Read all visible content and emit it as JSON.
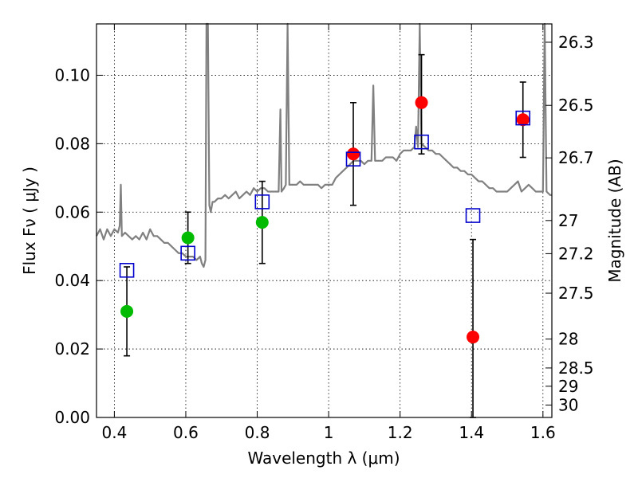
{
  "chart_data": {
    "type": "scatter",
    "title": "",
    "xlabel": "Wavelength  λ (μm)",
    "ylabel": "Flux  Fν  ( μJy )",
    "y2label": "Magnitude (AB)",
    "xlim": [
      0.35,
      1.625
    ],
    "ylim": [
      0.0,
      0.115
    ],
    "grid": true,
    "x_ticks": [
      {
        "value": 0.4,
        "label": "0.4"
      },
      {
        "value": 0.6,
        "label": "0.6"
      },
      {
        "value": 0.8,
        "label": "0.8"
      },
      {
        "value": 1.0,
        "label": "1"
      },
      {
        "value": 1.2,
        "label": "1.2"
      },
      {
        "value": 1.4,
        "label": "1.4"
      },
      {
        "value": 1.6,
        "label": "1.6"
      }
    ],
    "y_ticks": [
      {
        "value": 0.0,
        "label": "0.00"
      },
      {
        "value": 0.02,
        "label": "0.02"
      },
      {
        "value": 0.04,
        "label": "0.04"
      },
      {
        "value": 0.06,
        "label": "0.06"
      },
      {
        "value": 0.08,
        "label": "0.08"
      },
      {
        "value": 0.1,
        "label": "0.10"
      }
    ],
    "y2_ticks": [
      {
        "value": 26.3,
        "label": "26.3"
      },
      {
        "value": 26.5,
        "label": "26.5"
      },
      {
        "value": 26.7,
        "label": "26.7"
      },
      {
        "value": 27.0,
        "label": "27"
      },
      {
        "value": 27.2,
        "label": "27.2"
      },
      {
        "value": 27.5,
        "label": "27.5"
      },
      {
        "value": 28.0,
        "label": "28"
      },
      {
        "value": 28.5,
        "label": "28.5"
      },
      {
        "value": 29.0,
        "label": "29"
      },
      {
        "value": 30.0,
        "label": "30"
      }
    ],
    "series": [
      {
        "kind": "spectrum_line",
        "color": "#808080",
        "points": [
          [
            0.35,
            0.053
          ],
          [
            0.36,
            0.055
          ],
          [
            0.37,
            0.052
          ],
          [
            0.38,
            0.055
          ],
          [
            0.39,
            0.053
          ],
          [
            0.4,
            0.055
          ],
          [
            0.41,
            0.054
          ],
          [
            0.415,
            0.056
          ],
          [
            0.418,
            0.068
          ],
          [
            0.421,
            0.053
          ],
          [
            0.43,
            0.054
          ],
          [
            0.44,
            0.053
          ],
          [
            0.45,
            0.052
          ],
          [
            0.46,
            0.053
          ],
          [
            0.47,
            0.052
          ],
          [
            0.48,
            0.054
          ],
          [
            0.49,
            0.052
          ],
          [
            0.5,
            0.055
          ],
          [
            0.51,
            0.053
          ],
          [
            0.52,
            0.053
          ],
          [
            0.53,
            0.052
          ],
          [
            0.54,
            0.051
          ],
          [
            0.55,
            0.051
          ],
          [
            0.56,
            0.05
          ],
          [
            0.57,
            0.049
          ],
          [
            0.58,
            0.048
          ],
          [
            0.59,
            0.048
          ],
          [
            0.6,
            0.047
          ],
          [
            0.61,
            0.047
          ],
          [
            0.62,
            0.047
          ],
          [
            0.63,
            0.046
          ],
          [
            0.64,
            0.047
          ],
          [
            0.645,
            0.045
          ],
          [
            0.65,
            0.044
          ],
          [
            0.655,
            0.046
          ],
          [
            0.658,
            0.115
          ],
          [
            0.662,
            0.115
          ],
          [
            0.666,
            0.062
          ],
          [
            0.67,
            0.06
          ],
          [
            0.675,
            0.063
          ],
          [
            0.68,
            0.063
          ],
          [
            0.69,
            0.064
          ],
          [
            0.7,
            0.064
          ],
          [
            0.71,
            0.065
          ],
          [
            0.72,
            0.064
          ],
          [
            0.73,
            0.065
          ],
          [
            0.74,
            0.066
          ],
          [
            0.75,
            0.064
          ],
          [
            0.76,
            0.065
          ],
          [
            0.77,
            0.066
          ],
          [
            0.78,
            0.065
          ],
          [
            0.79,
            0.067
          ],
          [
            0.8,
            0.066
          ],
          [
            0.81,
            0.067
          ],
          [
            0.82,
            0.067
          ],
          [
            0.83,
            0.066
          ],
          [
            0.84,
            0.066
          ],
          [
            0.85,
            0.066
          ],
          [
            0.86,
            0.066
          ],
          [
            0.865,
            0.09
          ],
          [
            0.868,
            0.066
          ],
          [
            0.875,
            0.067
          ],
          [
            0.88,
            0.068
          ],
          [
            0.885,
            0.115
          ],
          [
            0.89,
            0.068
          ],
          [
            0.9,
            0.068
          ],
          [
            0.91,
            0.068
          ],
          [
            0.92,
            0.069
          ],
          [
            0.93,
            0.068
          ],
          [
            0.94,
            0.068
          ],
          [
            0.95,
            0.068
          ],
          [
            0.96,
            0.068
          ],
          [
            0.97,
            0.068
          ],
          [
            0.98,
            0.067
          ],
          [
            0.99,
            0.068
          ],
          [
            1.0,
            0.068
          ],
          [
            1.01,
            0.068
          ],
          [
            1.02,
            0.07
          ],
          [
            1.03,
            0.071
          ],
          [
            1.04,
            0.072
          ],
          [
            1.05,
            0.073
          ],
          [
            1.06,
            0.074
          ],
          [
            1.07,
            0.075
          ],
          [
            1.08,
            0.075
          ],
          [
            1.09,
            0.075
          ],
          [
            1.1,
            0.074
          ],
          [
            1.11,
            0.075
          ],
          [
            1.12,
            0.075
          ],
          [
            1.125,
            0.097
          ],
          [
            1.13,
            0.075
          ],
          [
            1.14,
            0.075
          ],
          [
            1.15,
            0.075
          ],
          [
            1.16,
            0.076
          ],
          [
            1.17,
            0.076
          ],
          [
            1.18,
            0.076
          ],
          [
            1.19,
            0.075
          ],
          [
            1.2,
            0.077
          ],
          [
            1.21,
            0.078
          ],
          [
            1.22,
            0.078
          ],
          [
            1.23,
            0.078
          ],
          [
            1.24,
            0.079
          ],
          [
            1.245,
            0.085
          ],
          [
            1.25,
            0.079
          ],
          [
            1.255,
            0.115
          ],
          [
            1.26,
            0.08
          ],
          [
            1.27,
            0.079
          ],
          [
            1.28,
            0.078
          ],
          [
            1.29,
            0.078
          ],
          [
            1.3,
            0.077
          ],
          [
            1.31,
            0.077
          ],
          [
            1.32,
            0.076
          ],
          [
            1.33,
            0.075
          ],
          [
            1.34,
            0.074
          ],
          [
            1.35,
            0.073
          ],
          [
            1.36,
            0.073
          ],
          [
            1.37,
            0.072
          ],
          [
            1.38,
            0.072
          ],
          [
            1.39,
            0.071
          ],
          [
            1.4,
            0.071
          ],
          [
            1.41,
            0.07
          ],
          [
            1.42,
            0.069
          ],
          [
            1.43,
            0.069
          ],
          [
            1.44,
            0.068
          ],
          [
            1.45,
            0.067
          ],
          [
            1.46,
            0.067
          ],
          [
            1.47,
            0.066
          ],
          [
            1.48,
            0.066
          ],
          [
            1.49,
            0.066
          ],
          [
            1.5,
            0.066
          ],
          [
            1.51,
            0.067
          ],
          [
            1.52,
            0.068
          ],
          [
            1.53,
            0.069
          ],
          [
            1.54,
            0.066
          ],
          [
            1.55,
            0.067
          ],
          [
            1.56,
            0.068
          ],
          [
            1.57,
            0.067
          ],
          [
            1.58,
            0.066
          ],
          [
            1.59,
            0.066
          ],
          [
            1.6,
            0.066
          ],
          [
            1.605,
            0.115
          ],
          [
            1.61,
            0.066
          ],
          [
            1.62,
            0.065
          ],
          [
            1.625,
            0.065
          ]
        ]
      },
      {
        "kind": "errorbar_points",
        "color": "#00bb00",
        "points": [
          {
            "x": 0.435,
            "y": 0.031,
            "lo": 0.018,
            "hi": 0.044
          },
          {
            "x": 0.606,
            "y": 0.0525,
            "lo": 0.045,
            "hi": 0.06
          },
          {
            "x": 0.814,
            "y": 0.057,
            "lo": 0.045,
            "hi": 0.069
          }
        ]
      },
      {
        "kind": "errorbar_points",
        "color": "#ff0000",
        "points": [
          {
            "x": 1.069,
            "y": 0.077,
            "lo": 0.062,
            "hi": 0.092
          },
          {
            "x": 1.26,
            "y": 0.092,
            "lo": 0.077,
            "hi": 0.106
          },
          {
            "x": 1.404,
            "y": 0.0235,
            "lo": 0.0,
            "hi": 0.052
          },
          {
            "x": 1.544,
            "y": 0.087,
            "lo": 0.076,
            "hi": 0.098
          }
        ]
      },
      {
        "kind": "model_squares",
        "color": "#0000cc",
        "points": [
          {
            "x": 0.435,
            "y": 0.043
          },
          {
            "x": 0.606,
            "y": 0.048
          },
          {
            "x": 0.814,
            "y": 0.063
          },
          {
            "x": 1.069,
            "y": 0.0755
          },
          {
            "x": 1.26,
            "y": 0.0805
          },
          {
            "x": 1.404,
            "y": 0.059
          },
          {
            "x": 1.544,
            "y": 0.0875
          }
        ]
      }
    ]
  }
}
